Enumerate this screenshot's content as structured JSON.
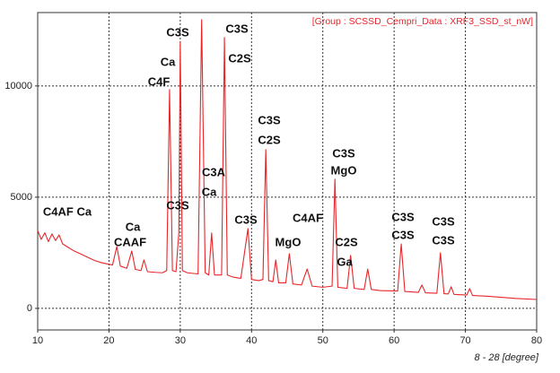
{
  "chart_data": {
    "type": "line",
    "legend_text": "[Group : SCSSD_Cempri_Data : XRF3_SSD_st_nW]",
    "x_label": "8 - 28 [degree]",
    "x": [
      10,
      10.5,
      11,
      11.5,
      12,
      12.5,
      13,
      13.5,
      14,
      15,
      16,
      17,
      18,
      19,
      20.5,
      21.1,
      21.6,
      22.5,
      23.2,
      23.7,
      24.5,
      24.9,
      25.4,
      26.5,
      27.5,
      28.1,
      28.5,
      28.9,
      29.4,
      29.8,
      30.0,
      30.3,
      31,
      32.5,
      33.0,
      33.5,
      34.0,
      34.4,
      34.8,
      35.8,
      36.2,
      36.6,
      37.5,
      38.5,
      39.5,
      40.0,
      41.0,
      41.6,
      42.0,
      42.4,
      43.0,
      43.4,
      43.8,
      44.8,
      45.3,
      45.8,
      47,
      47.8,
      48.5,
      50,
      51.3,
      51.7,
      52.1,
      53.4,
      53.9,
      54.4,
      55.8,
      56.3,
      56.8,
      58,
      60.5,
      61.0,
      61.5,
      63.4,
      63.9,
      64.4,
      66,
      66.5,
      67,
      67.6,
      68.0,
      68.4,
      70.2,
      70.6,
      71,
      73,
      75,
      77,
      80
    ],
    "series": [
      {
        "color": "#e8262a",
        "values": [
          3500,
          3100,
          3400,
          3000,
          3350,
          3050,
          3300,
          2900,
          2800,
          2600,
          2450,
          2300,
          2150,
          2050,
          1950,
          2780,
          1900,
          1800,
          2580,
          1750,
          1700,
          2180,
          1650,
          1620,
          1600,
          1700,
          9840,
          1700,
          1650,
          3390,
          11980,
          1700,
          1600,
          1550,
          12980,
          1600,
          1500,
          3390,
          1500,
          1500,
          12180,
          1500,
          1400,
          1350,
          3590,
          1300,
          1250,
          1300,
          7140,
          1250,
          1200,
          2180,
          1150,
          1150,
          2460,
          1100,
          1050,
          1770,
          1000,
          950,
          1000,
          5810,
          950,
          900,
          2380,
          900,
          850,
          1770,
          850,
          800,
          780,
          2900,
          760,
          720,
          1050,
          700,
          680,
          2500,
          660,
          650,
          970,
          630,
          600,
          890,
          580,
          550,
          500,
          450,
          400
        ]
      }
    ],
    "xlim": [
      10,
      80
    ],
    "xticks": [
      10,
      20,
      30,
      40,
      50,
      60,
      70,
      80
    ],
    "ylim": [
      -970,
      13300
    ],
    "yticks": [
      0,
      5000,
      10000
    ],
    "grid": true,
    "annotations": [
      "C3S",
      "Ca",
      "C4F",
      "C3S",
      "C2S",
      "C3S",
      "C2S",
      "C3A",
      "Ca",
      "C3S",
      "C3S",
      "C4AF Ca",
      "Ca",
      "CAAF",
      "C4AF",
      "MgO",
      "C3S",
      "MgO",
      "C2S",
      "Ga",
      "C3S",
      "C3S",
      "C3S",
      "C3S"
    ]
  }
}
